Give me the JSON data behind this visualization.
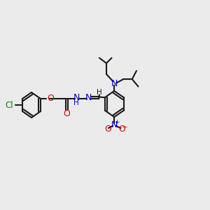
{
  "bg_color": "#ebebeb",
  "bond_color": "#1a1a1a",
  "cl_color": "#008800",
  "o_color": "#dd0000",
  "n_color": "#0000cc",
  "lw": 1.5,
  "fig_w": 3.0,
  "fig_h": 3.0,
  "dpi": 100,
  "xlim": [
    0,
    12
  ],
  "ylim": [
    0,
    10
  ]
}
